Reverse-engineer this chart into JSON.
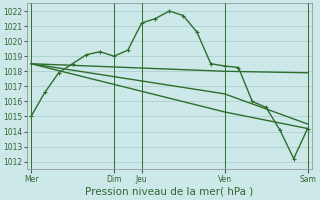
{
  "bg_color": "#cce8e8",
  "grid_color": "#aacccc",
  "line_color": "#2d6e2d",
  "xlabel": "Pression niveau de la mer( hPa )",
  "ylim": [
    1011.5,
    1022.5
  ],
  "yticks": [
    1012,
    1013,
    1014,
    1015,
    1016,
    1017,
    1018,
    1019,
    1020,
    1021,
    1022
  ],
  "x_tick_labels": [
    "Mer",
    "Dim",
    "Jeu",
    "Ven",
    "Sam"
  ],
  "x_tick_positions": [
    0,
    6,
    8,
    14,
    20
  ],
  "vlines_x": [
    0,
    6,
    8,
    14,
    20
  ],
  "series1": {
    "x": [
      0,
      1,
      2,
      3,
      4,
      5,
      6,
      7,
      8,
      9,
      10,
      11,
      12,
      13,
      14,
      15,
      16,
      17,
      18,
      19,
      20
    ],
    "y": [
      1015.0,
      1016.6,
      1017.9,
      1018.5,
      1019.1,
      1019.3,
      1019.0,
      1019.4,
      1021.2,
      1021.5,
      1022.0,
      1021.7,
      1020.6,
      1018.5,
      1018.35,
      1018.25,
      1016.0,
      1015.6,
      1014.1,
      1012.2,
      1014.2
    ]
  },
  "series2": {
    "x": [
      0,
      14,
      20
    ],
    "y": [
      1018.5,
      1018.0,
      1017.9
    ]
  },
  "series3": {
    "x": [
      0,
      14,
      20
    ],
    "y": [
      1018.5,
      1016.5,
      1014.5
    ]
  },
  "series4": {
    "x": [
      0,
      14,
      20
    ],
    "y": [
      1018.5,
      1015.3,
      1014.2
    ]
  },
  "marker_size": 2.5,
  "line_width": 1.0,
  "tick_fontsize": 5.5,
  "xlabel_fontsize": 7.5
}
